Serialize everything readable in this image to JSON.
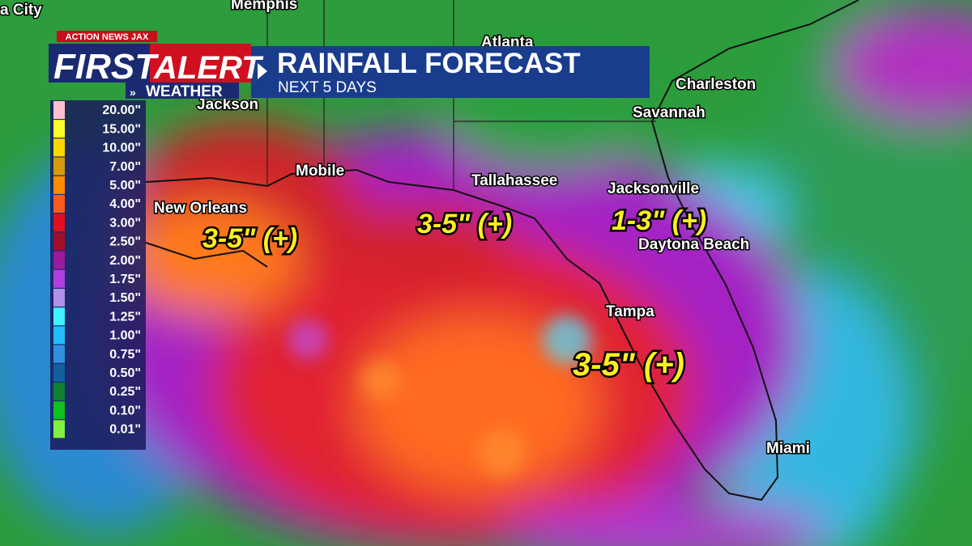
{
  "header": {
    "station": "ACTION NEWS JAX",
    "first": "FIRST",
    "alert": "ALERT",
    "weather": "WEATHER",
    "title": "RAINFALL FORECAST",
    "subtitle": "NEXT 5 DAYS"
  },
  "legend": [
    {
      "label": "20.00\"",
      "color": "#ffc0d0"
    },
    {
      "label": "15.00\"",
      "color": "#ffff30"
    },
    {
      "label": "10.00\"",
      "color": "#ffd700"
    },
    {
      "label": "7.00\"",
      "color": "#d49a10"
    },
    {
      "label": "5.00\"",
      "color": "#ff8c00"
    },
    {
      "label": "4.00\"",
      "color": "#ff5a1e"
    },
    {
      "label": "3.00\"",
      "color": "#e01020"
    },
    {
      "label": "2.50\"",
      "color": "#a0102a"
    },
    {
      "label": "2.00\"",
      "color": "#9a1aa0"
    },
    {
      "label": "1.75\"",
      "color": "#b040e0"
    },
    {
      "label": "1.50\"",
      "color": "#b090e8"
    },
    {
      "label": "1.25\"",
      "color": "#40f0ff"
    },
    {
      "label": "1.00\"",
      "color": "#20c0ff"
    },
    {
      "label": "0.75\"",
      "color": "#3090e0"
    },
    {
      "label": "0.50\"",
      "color": "#1060a0"
    },
    {
      "label": "0.25\"",
      "color": "#108030"
    },
    {
      "label": "0.10\"",
      "color": "#10c020"
    },
    {
      "label": "0.01\"",
      "color": "#80f040"
    }
  ],
  "cities": [
    "a City",
    "Memphis",
    "Atlanta",
    "Charleston",
    "Savannah",
    "Jackson",
    "Mobile",
    "Tallahassee",
    "Jacksonville",
    "New Orleans",
    "Daytona Beach",
    "Tampa",
    "Miami"
  ],
  "annotations": [
    "3-5\" (+)",
    "3-5\" (+)",
    "1-3\" (+)",
    "3-5\" (+)"
  ]
}
